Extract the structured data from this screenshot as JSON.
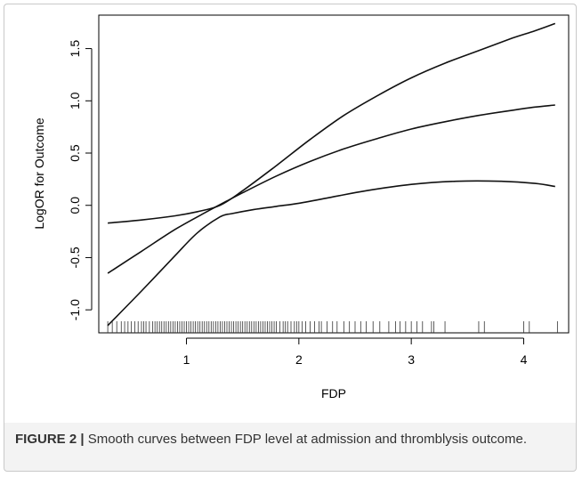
{
  "caption": {
    "label": "FIGURE 2 |",
    "text": "Smooth curves between FDP level at admission and thromblysis outcome."
  },
  "chart_data": {
    "type": "line",
    "xlabel": "FDP",
    "ylabel": "LogOR for Outcome",
    "xlim": [
      0.22,
      4.4
    ],
    "ylim": [
      -1.22,
      1.82
    ],
    "xticks": [
      1,
      2,
      3,
      4
    ],
    "yticks": [
      -1.0,
      -0.5,
      0.0,
      0.5,
      1.0,
      1.5
    ],
    "ytick_labels": [
      "-1.0",
      "-0.5",
      "0.0",
      "0.5",
      "1.0",
      "1.5"
    ],
    "grid": false,
    "line_color": "#111111",
    "series": [
      {
        "x": [
          0.3,
          0.6,
          0.9,
          1.1,
          1.3,
          1.4,
          1.6,
          1.8,
          2.0,
          2.3,
          2.6,
          3.0,
          3.4,
          3.8,
          4.1,
          4.28
        ],
        "values": [
          -1.15,
          -0.82,
          -0.48,
          -0.26,
          -0.11,
          -0.08,
          -0.04,
          -0.01,
          0.02,
          0.08,
          0.14,
          0.2,
          0.23,
          0.23,
          0.21,
          0.18
        ]
      },
      {
        "x": [
          0.3,
          0.6,
          0.9,
          1.2,
          1.5,
          1.8,
          2.1,
          2.4,
          2.7,
          3.0,
          3.3,
          3.6,
          3.9,
          4.1,
          4.28
        ],
        "values": [
          -0.65,
          -0.44,
          -0.23,
          -0.05,
          0.12,
          0.28,
          0.42,
          0.54,
          0.64,
          0.73,
          0.8,
          0.86,
          0.91,
          0.94,
          0.96
        ]
      },
      {
        "x": [
          0.3,
          0.6,
          0.9,
          1.1,
          1.3,
          1.5,
          1.8,
          2.1,
          2.4,
          2.7,
          3.0,
          3.3,
          3.6,
          3.9,
          4.1,
          4.28
        ],
        "values": [
          -0.17,
          -0.14,
          -0.1,
          -0.06,
          0.0,
          0.14,
          0.38,
          0.63,
          0.86,
          1.05,
          1.22,
          1.36,
          1.48,
          1.6,
          1.67,
          1.74
        ]
      }
    ],
    "rug": [
      0.3,
      0.34,
      0.38,
      0.42,
      0.45,
      0.48,
      0.51,
      0.54,
      0.57,
      0.6,
      0.62,
      0.64,
      0.67,
      0.7,
      0.72,
      0.74,
      0.76,
      0.78,
      0.8,
      0.82,
      0.84,
      0.86,
      0.88,
      0.9,
      0.92,
      0.94,
      0.96,
      0.98,
      1.0,
      1.02,
      1.04,
      1.06,
      1.08,
      1.1,
      1.12,
      1.14,
      1.16,
      1.18,
      1.2,
      1.22,
      1.24,
      1.26,
      1.28,
      1.3,
      1.32,
      1.34,
      1.36,
      1.38,
      1.4,
      1.42,
      1.44,
      1.46,
      1.48,
      1.5,
      1.52,
      1.54,
      1.56,
      1.58,
      1.6,
      1.62,
      1.64,
      1.66,
      1.68,
      1.7,
      1.72,
      1.74,
      1.76,
      1.78,
      1.8,
      1.83,
      1.86,
      1.88,
      1.9,
      1.93,
      1.96,
      1.98,
      2.0,
      2.03,
      2.06,
      2.1,
      2.14,
      2.18,
      2.2,
      2.25,
      2.3,
      2.34,
      2.4,
      2.45,
      2.5,
      2.55,
      2.6,
      2.66,
      2.72,
      2.8,
      2.86,
      2.9,
      2.95,
      3.0,
      3.05,
      3.1,
      3.18,
      3.2,
      3.3,
      3.6,
      3.65,
      4.0,
      4.05,
      4.3
    ]
  }
}
